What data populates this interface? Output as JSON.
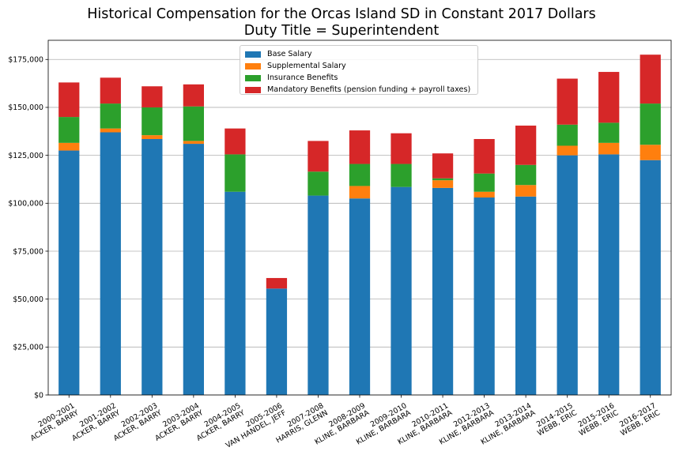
{
  "chart_data": {
    "type": "bar",
    "stacked": true,
    "title": "Historical Compensation for the Orcas Island SD in Constant 2017 Dollars",
    "subtitle": "Duty Title = Superintendent",
    "ylim": [
      0,
      185000
    ],
    "yticks": [
      "$0",
      "$25,000",
      "$50,000",
      "$75,000",
      "$100,000",
      "$125,000",
      "$150,000",
      "$175,000"
    ],
    "ytick_values": [
      0,
      25000,
      50000,
      75000,
      100000,
      125000,
      150000,
      175000
    ],
    "grid": "horizontal",
    "legend_position": "top-center",
    "categories": [
      [
        "2000-2001",
        "ACKER, BARRY"
      ],
      [
        "2001-2002",
        "ACKER, BARRY"
      ],
      [
        "2002-2003",
        "ACKER, BARRY"
      ],
      [
        "2003-2004",
        "ACKER, BARRY"
      ],
      [
        "2004-2005",
        "ACKER, BARRY"
      ],
      [
        "2005-2006",
        "VAN HANDEL, JEFF"
      ],
      [
        "2007-2008",
        "HARRIS, GLENN"
      ],
      [
        "2008-2009",
        "KLINE, BARBARA"
      ],
      [
        "2009-2010",
        "KLINE, BARBARA"
      ],
      [
        "2010-2011",
        "KLINE, BARBARA"
      ],
      [
        "2012-2013",
        "KLINE, BARBARA"
      ],
      [
        "2013-2014",
        "KLINE, BARBARA"
      ],
      [
        "2014-2015",
        "WEBB, ERIC"
      ],
      [
        "2015-2016",
        "WEBB, ERIC"
      ],
      [
        "2016-2017",
        "WEBB, ERIC"
      ]
    ],
    "series": [
      {
        "name": "Base Salary",
        "color": "#1f77b4",
        "values": [
          127500,
          137000,
          133500,
          131000,
          106000,
          55500,
          104000,
          102500,
          108500,
          108000,
          103000,
          103500,
          125000,
          125500,
          122500
        ]
      },
      {
        "name": "Supplemental Salary",
        "color": "#ff7f0e",
        "values": [
          4000,
          2000,
          2000,
          1500,
          0,
          0,
          0,
          6500,
          0,
          4000,
          3000,
          6000,
          5000,
          6000,
          8000
        ]
      },
      {
        "name": "Insurance Benefits",
        "color": "#2ca02c",
        "values": [
          13500,
          13000,
          14500,
          18000,
          19500,
          0,
          12500,
          11500,
          12000,
          1000,
          9500,
          10500,
          11000,
          10500,
          21500
        ]
      },
      {
        "name": "Mandatory Benefits (pension funding + payroll taxes)",
        "color": "#d62728",
        "values": [
          18000,
          13500,
          11000,
          11500,
          13500,
          5500,
          16000,
          17500,
          16000,
          13000,
          18000,
          20500,
          24000,
          26500,
          25500
        ]
      }
    ]
  }
}
